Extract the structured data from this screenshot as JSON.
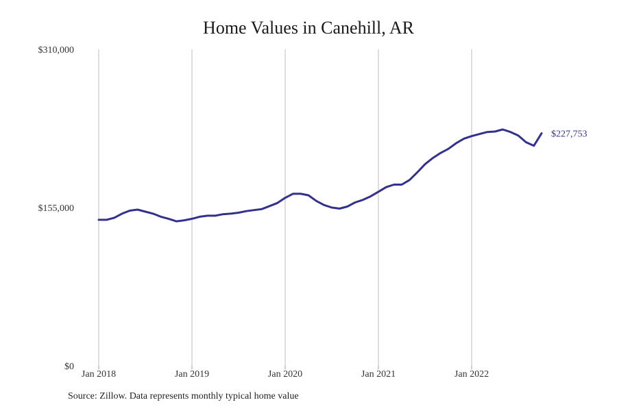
{
  "chart_data": {
    "type": "line",
    "title": "Home Values in Canehill, AR",
    "source": "Source: Zillow. Data represents monthly typical home value",
    "ylim": [
      0,
      310000
    ],
    "y_ticks": [
      "$0",
      "$155,000",
      "$310,000"
    ],
    "y_tick_values": [
      0,
      155000,
      310000
    ],
    "x_ticks": [
      "Jan 2018",
      "Jan 2019",
      "Jan 2020",
      "Jan 2021",
      "Jan 2022"
    ],
    "x_tick_values": [
      "2018-01",
      "2019-01",
      "2020-01",
      "2021-01",
      "2022-01"
    ],
    "grid": "vertical",
    "line_color": "#33318f",
    "end_label": "$227,753",
    "x": [
      "2018-01",
      "2018-02",
      "2018-03",
      "2018-04",
      "2018-05",
      "2018-06",
      "2018-07",
      "2018-08",
      "2018-09",
      "2018-10",
      "2018-11",
      "2018-12",
      "2019-01",
      "2019-02",
      "2019-03",
      "2019-04",
      "2019-05",
      "2019-06",
      "2019-07",
      "2019-08",
      "2019-09",
      "2019-10",
      "2019-11",
      "2019-12",
      "2020-01",
      "2020-02",
      "2020-03",
      "2020-04",
      "2020-05",
      "2020-06",
      "2020-07",
      "2020-08",
      "2020-09",
      "2020-10",
      "2020-11",
      "2020-12",
      "2021-01",
      "2021-02",
      "2021-03",
      "2021-04",
      "2021-05",
      "2021-06",
      "2021-07",
      "2021-08",
      "2021-09",
      "2021-10",
      "2021-11",
      "2021-12",
      "2022-01",
      "2022-02",
      "2022-03",
      "2022-04",
      "2022-05",
      "2022-06",
      "2022-07",
      "2022-08",
      "2022-09",
      "2022-10"
    ],
    "values": [
      143000,
      143000,
      145000,
      149000,
      152000,
      153000,
      151000,
      149000,
      146000,
      144000,
      141500,
      142500,
      144000,
      146000,
      147000,
      147000,
      148500,
      149000,
      150000,
      151500,
      152500,
      153500,
      156500,
      159500,
      164500,
      168500,
      168500,
      167000,
      161500,
      157500,
      155000,
      154000,
      156000,
      160000,
      162500,
      166000,
      170500,
      175000,
      177500,
      177500,
      182000,
      189500,
      197500,
      203500,
      208500,
      212500,
      218000,
      222500,
      225000,
      227000,
      229000,
      229500,
      231500,
      229000,
      225500,
      219000,
      215500,
      227753
    ]
  }
}
